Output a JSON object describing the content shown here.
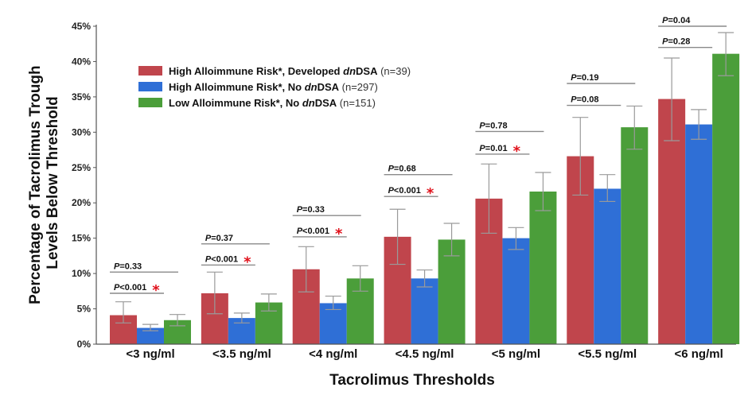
{
  "chart_data": {
    "type": "bar",
    "xlabel": "Tacrolimus Thresholds",
    "ylabel_lines": [
      "Percentage of Tacrolimus Trough",
      "Levels Below Threshold"
    ],
    "ylim": [
      0,
      45
    ],
    "y_ticks": [
      0,
      5,
      10,
      15,
      20,
      25,
      30,
      35,
      40,
      45
    ],
    "y_tick_suffix": "%",
    "categories": [
      "<3 ng/ml",
      "<3.5 ng/ml",
      "<4 ng/ml",
      "<4.5 ng/ml",
      "<5 ng/ml",
      "<5.5 ng/ml",
      "<6 ng/ml"
    ],
    "legend_position": "top-left",
    "series": [
      {
        "name": "High Alloimmune Risk*, Developed dnDSA (n=39)",
        "legend_parts": [
          "High Alloimmune Risk*, Developed ",
          "dn",
          "DSA",
          " (n=39)"
        ],
        "color": "#c0454c",
        "values": [
          4.1,
          7.2,
          10.6,
          15.2,
          20.6,
          26.6,
          34.7
        ],
        "err_low": [
          3.0,
          4.3,
          7.4,
          11.3,
          15.7,
          21.1,
          28.8
        ],
        "err_high": [
          6.0,
          10.2,
          13.8,
          19.1,
          25.5,
          32.1,
          40.5
        ]
      },
      {
        "name": "High Alloimmune Risk*, No dnDSA (n=297)",
        "legend_parts": [
          "High Alloimmune Risk*, No ",
          "dn",
          "DSA",
          " (n=297)"
        ],
        "color": "#2f6fd6",
        "values": [
          2.3,
          3.7,
          5.8,
          9.3,
          15.0,
          22.0,
          31.1
        ],
        "err_low": [
          1.9,
          3.0,
          4.9,
          8.1,
          13.4,
          20.2,
          29.0
        ],
        "err_high": [
          2.8,
          4.4,
          6.8,
          10.5,
          16.5,
          24.0,
          33.2
        ]
      },
      {
        "name": "Low Alloimmune Risk*, No dnDSA (n=151)",
        "legend_parts": [
          "Low Alloimmune Risk*, No ",
          "dn",
          "DSA",
          " (n=151)"
        ],
        "color": "#4b9e3a",
        "values": [
          3.4,
          5.9,
          9.3,
          14.8,
          21.6,
          30.7,
          41.1
        ],
        "err_low": [
          2.6,
          4.7,
          7.5,
          12.5,
          18.9,
          27.6,
          38.0
        ],
        "err_high": [
          4.2,
          7.1,
          11.1,
          17.1,
          24.3,
          33.7,
          44.1
        ]
      }
    ],
    "comparisons": [
      {
        "upper_label": "P=0.33",
        "upper_y": 10.2,
        "lower_label": "P<0.001",
        "lower_y": 7.2,
        "star": "*"
      },
      {
        "upper_label": "P=0.37",
        "upper_y": 14.2,
        "lower_label": "P<0.001",
        "lower_y": 11.2,
        "star": "*"
      },
      {
        "upper_label": "P=0.33",
        "upper_y": 18.2,
        "lower_label": "P<0.001",
        "lower_y": 15.2,
        "star": "*"
      },
      {
        "upper_label": "P=0.68",
        "upper_y": 24.0,
        "lower_label": "P<0.001",
        "lower_y": 20.9,
        "star": "*"
      },
      {
        "upper_label": "P=0.78",
        "upper_y": 30.1,
        "lower_label": "P=0.01",
        "lower_y": 26.9,
        "star": "*"
      },
      {
        "upper_label": "P=0.19",
        "upper_y": 36.9,
        "lower_label": "P=0.08",
        "lower_y": 33.8,
        "star": ""
      },
      {
        "upper_label": "P=0.04",
        "upper_y": 45.0,
        "lower_label": "P=0.28",
        "lower_y": 42.0,
        "star": ""
      }
    ]
  }
}
